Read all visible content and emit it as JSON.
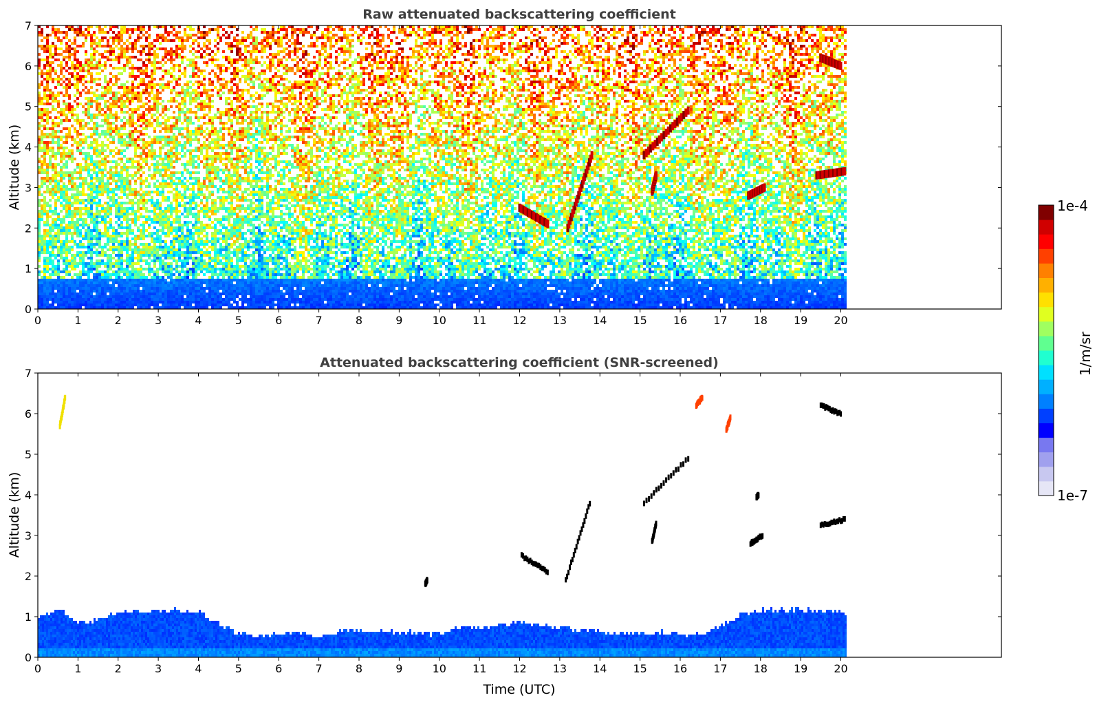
{
  "chart_data": [
    {
      "type": "heatmap",
      "title": "Raw attenuated backscattering coefficient",
      "xlabel": "",
      "ylabel": "Altitude (km)",
      "xlim": [
        0,
        24
      ],
      "ylim": [
        0,
        7
      ],
      "data_x_range": [
        0,
        20.1
      ],
      "x_ticks": [
        "0",
        "1",
        "2",
        "3",
        "4",
        "5",
        "6",
        "7",
        "8",
        "9",
        "10",
        "11",
        "12",
        "13",
        "14",
        "15",
        "16",
        "17",
        "18",
        "19",
        "20"
      ],
      "y_ticks": [
        "0",
        "1",
        "2",
        "3",
        "4",
        "5",
        "6",
        "7"
      ],
      "colorscale": "jet",
      "color_range": [
        "1e-7",
        "1e-4"
      ],
      "description_features": {
        "boundary_layer": {
          "top_km": 0.8,
          "level": "blue/cyan"
        },
        "background_noise_gradient": "cyan near 2 km to yellow-orange near 7 km",
        "cloud_layers": [
          {
            "t_start": 12.0,
            "t_end": 12.7,
            "alt_start": 2.5,
            "alt_end": 2.1
          },
          {
            "t_start": 13.2,
            "t_end": 13.8,
            "alt_start": 2.0,
            "alt_end": 3.8
          },
          {
            "t_start": 15.1,
            "t_end": 16.2,
            "alt_start": 3.8,
            "alt_end": 4.9
          },
          {
            "t_start": 15.3,
            "t_end": 15.4,
            "alt_start": 2.9,
            "alt_end": 3.3
          },
          {
            "t_start": 17.7,
            "t_end": 18.1,
            "alt_start": 2.8,
            "alt_end": 3.0
          },
          {
            "t_start": 19.4,
            "t_end": 20.1,
            "alt_start": 3.3,
            "alt_end": 3.4
          },
          {
            "t_start": 19.5,
            "t_end": 20.0,
            "alt_start": 6.2,
            "alt_end": 6.0
          }
        ]
      }
    },
    {
      "type": "heatmap",
      "title": "Attenuated backscattering coefficient (SNR-screened)",
      "xlabel": "Time (UTC)",
      "ylabel": "Altitude (km)",
      "xlim": [
        0,
        24
      ],
      "ylim": [
        0,
        7
      ],
      "data_x_range": [
        0,
        20.1
      ],
      "x_ticks": [
        "0",
        "1",
        "2",
        "3",
        "4",
        "5",
        "6",
        "7",
        "8",
        "9",
        "10",
        "11",
        "12",
        "13",
        "14",
        "15",
        "16",
        "17",
        "18",
        "19",
        "20"
      ],
      "y_ticks": [
        "0",
        "1",
        "2",
        "3",
        "4",
        "5",
        "6",
        "7"
      ],
      "colorscale": "jet",
      "color_range": [
        "1e-7",
        "1e-4"
      ],
      "boundary_layer_top_km": [
        [
          0,
          1.05
        ],
        [
          0.5,
          1.2
        ],
        [
          1,
          0.85
        ],
        [
          1.5,
          0.95
        ],
        [
          2,
          1.15
        ],
        [
          3,
          1.2
        ],
        [
          4,
          1.15
        ],
        [
          4.5,
          0.85
        ],
        [
          5,
          0.62
        ],
        [
          5.5,
          0.55
        ],
        [
          6,
          0.6
        ],
        [
          6.5,
          0.65
        ],
        [
          7,
          0.55
        ],
        [
          7.5,
          0.65
        ],
        [
          8,
          0.7
        ],
        [
          9,
          0.65
        ],
        [
          10,
          0.6
        ],
        [
          10.5,
          0.8
        ],
        [
          11,
          0.75
        ],
        [
          11.5,
          0.85
        ],
        [
          12,
          0.9
        ],
        [
          13,
          0.75
        ],
        [
          13.5,
          0.7
        ],
        [
          14,
          0.65
        ],
        [
          15,
          0.6
        ],
        [
          15.5,
          0.65
        ],
        [
          16,
          0.6
        ],
        [
          16.5,
          0.6
        ],
        [
          17,
          0.8
        ],
        [
          17.5,
          1.1
        ],
        [
          18,
          1.2
        ],
        [
          19,
          1.2
        ],
        [
          20.1,
          1.15
        ]
      ],
      "cloud_segments": [
        {
          "t_start": 0.55,
          "t_end": 0.68,
          "alt_start": 5.7,
          "alt_end": 6.4,
          "color": "yellow"
        },
        {
          "t_start": 16.4,
          "t_end": 16.55,
          "alt_start": 6.2,
          "alt_end": 6.4,
          "color": "orange-red"
        },
        {
          "t_start": 17.15,
          "t_end": 17.25,
          "alt_start": 5.6,
          "alt_end": 5.9,
          "color": "orange-red"
        },
        {
          "t_start": 19.5,
          "t_end": 20.0,
          "alt_start": 6.2,
          "alt_end": 6.0,
          "color": "black"
        },
        {
          "t_start": 12.05,
          "t_end": 12.7,
          "alt_start": 2.5,
          "alt_end": 2.1,
          "color": "black"
        },
        {
          "t_start": 13.15,
          "t_end": 13.75,
          "alt_start": 1.9,
          "alt_end": 3.8,
          "color": "black"
        },
        {
          "t_start": 15.1,
          "t_end": 16.2,
          "alt_start": 3.8,
          "alt_end": 4.9,
          "color": "black"
        },
        {
          "t_start": 15.3,
          "t_end": 15.4,
          "alt_start": 2.85,
          "alt_end": 3.3,
          "color": "black"
        },
        {
          "t_start": 17.75,
          "t_end": 18.05,
          "alt_start": 2.8,
          "alt_end": 3.0,
          "color": "black"
        },
        {
          "t_start": 19.5,
          "t_end": 20.1,
          "alt_start": 3.25,
          "alt_end": 3.4,
          "color": "black"
        },
        {
          "t_start": 9.65,
          "t_end": 9.7,
          "alt_start": 1.8,
          "alt_end": 1.9,
          "color": "black"
        },
        {
          "t_start": 17.9,
          "t_end": 17.95,
          "alt_start": 3.95,
          "alt_end": 4.0,
          "color": "black"
        }
      ]
    }
  ],
  "colorbar": {
    "max_label": "1e-4",
    "min_label": "1e-7",
    "unit_label": "1/m/sr",
    "colors": [
      "#e6e6f6",
      "#c8c8f0",
      "#a0a0ee",
      "#7878f0",
      "#0000ff",
      "#0040ff",
      "#0080ff",
      "#00b0ff",
      "#00e0ff",
      "#20ffd0",
      "#60ff90",
      "#a0ff60",
      "#e0ff20",
      "#ffe000",
      "#ffb000",
      "#ff8000",
      "#ff4000",
      "#ff0000",
      "#d00000",
      "#800000"
    ]
  }
}
